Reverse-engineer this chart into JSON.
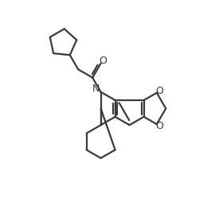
{
  "background_color": "#ffffff",
  "line_color": "#3a3a3a",
  "line_width": 1.6,
  "figsize": [
    2.8,
    2.64
  ],
  "dpi": 100,
  "xlim": [
    0,
    280
  ],
  "ylim": [
    0,
    264
  ]
}
